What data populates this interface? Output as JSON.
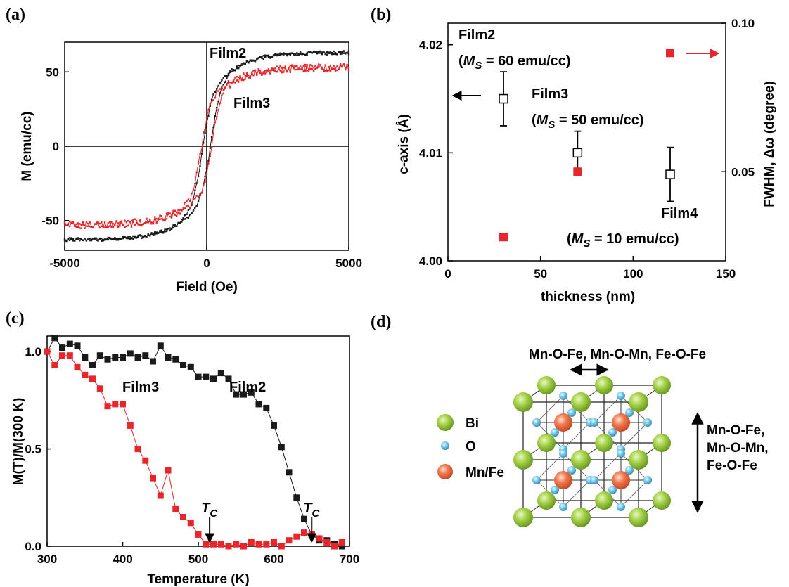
{
  "panels": {
    "a": "(a)",
    "b": "(b)",
    "c": "(c)",
    "d": "(d)"
  },
  "colors": {
    "red": "#e8262a",
    "black": "#1a1a1a",
    "bi": "#9acc3c",
    "o": "#6cc6e8",
    "mnfe": "#f07850"
  },
  "chart_data": [
    {
      "panel": "a",
      "type": "line",
      "xlabel": "Field (Oe)",
      "ylabel": "M (emu/cc)",
      "xlim": [
        -5000,
        5000
      ],
      "ylim": [
        -70,
        70
      ],
      "xticks": [
        "-5000",
        "0",
        "5000"
      ],
      "yticks": [
        "-50",
        "0",
        "50"
      ],
      "annotations": [
        "Film2",
        "Film3"
      ],
      "series": [
        {
          "name": "Film2",
          "color": "black",
          "Ms": 63,
          "Hc": 150,
          "width": 350,
          "noise": 1.2,
          "x": [
            -5000,
            -4000,
            -3000,
            -2000,
            -1000,
            -500,
            -200,
            0,
            200,
            500,
            1000,
            2000,
            3000,
            4000,
            5000
          ],
          "y": [
            -63,
            -62,
            -60,
            -56,
            -49,
            -42,
            -25,
            -8,
            18,
            40,
            49,
            56,
            60,
            62,
            63
          ]
        },
        {
          "name": "Film3",
          "color": "red",
          "Ms": 53,
          "Hc": 200,
          "width": 300,
          "noise": 2.5,
          "x": [
            -5000,
            -4000,
            -3000,
            -2000,
            -1000,
            -500,
            -200,
            0,
            200,
            500,
            1000,
            2000,
            3000,
            4000,
            5000
          ],
          "y": [
            -53,
            -52,
            -51,
            -49,
            -44,
            -38,
            -22,
            -6,
            15,
            38,
            45,
            52,
            55,
            54,
            53
          ]
        }
      ]
    },
    {
      "panel": "b",
      "type": "scatter",
      "xlabel": "thickness (nm)",
      "ylabel_left": "c-axis (Å)",
      "ylabel_right": "FWHM, Δω (degree)",
      "xlim": [
        0,
        150
      ],
      "ylim_left": [
        4.0,
        4.022
      ],
      "ylim_right": [
        0.02,
        0.1
      ],
      "xticks": [
        "0",
        "50",
        "100",
        "150"
      ],
      "yticks_left": [
        "4.00",
        "4.01",
        "4.02"
      ],
      "yticks_right": [
        "0.05",
        "0.10"
      ],
      "caxis": {
        "x": [
          30,
          70,
          120
        ],
        "y": [
          4.015,
          4.01,
          4.008
        ],
        "err": [
          0.0025,
          0.002,
          0.0025
        ]
      },
      "fwhm": {
        "x": [
          30,
          70,
          120
        ],
        "y": [
          0.028,
          0.05,
          0.09
        ]
      },
      "labels": [
        {
          "film": "Film2",
          "ms_prefix": "(",
          "ms_M": "M",
          "ms_S": "S",
          "ms_rest": " = 60 emu/cc)"
        },
        {
          "film": "Film3",
          "ms_prefix": "(",
          "ms_M": "M",
          "ms_S": "S",
          "ms_rest": " = 50 emu/cc)"
        },
        {
          "film": "Film4",
          "ms_prefix": "(",
          "ms_M": "M",
          "ms_S": "S",
          "ms_rest": " = 10 emu/cc)"
        }
      ]
    },
    {
      "panel": "c",
      "type": "line",
      "xlabel": "Temperature (K)",
      "ylabel": "M(T)/M(300 K)",
      "xlim": [
        300,
        700
      ],
      "ylim": [
        0.0,
        1.08
      ],
      "xticks": [
        "300",
        "400",
        "500",
        "600",
        "700"
      ],
      "yticks": [
        "0.0",
        "0.5",
        "1.0"
      ],
      "annotations": [
        "Film3",
        "Film2"
      ],
      "tc_label": "T",
      "tc_sub": "C",
      "tc_positions": [
        515,
        650
      ],
      "series": [
        {
          "name": "Film2",
          "color": "black",
          "x": [
            300,
            310,
            320,
            330,
            340,
            350,
            360,
            370,
            380,
            390,
            400,
            410,
            420,
            430,
            440,
            450,
            460,
            470,
            480,
            490,
            500,
            510,
            520,
            530,
            540,
            550,
            560,
            570,
            580,
            590,
            600,
            610,
            620,
            630,
            640,
            650,
            660,
            670,
            680,
            690
          ],
          "y": [
            1.0,
            1.07,
            1.02,
            1.04,
            1.03,
            0.97,
            0.93,
            0.98,
            0.96,
            0.97,
            0.97,
            0.99,
            0.97,
            0.98,
            0.95,
            1.03,
            0.97,
            0.96,
            0.93,
            0.92,
            0.87,
            0.87,
            0.86,
            0.89,
            0.86,
            0.78,
            0.78,
            0.79,
            0.73,
            0.71,
            0.62,
            0.51,
            0.38,
            0.25,
            0.14,
            0.06,
            0.03,
            0.03,
            0.01,
            0.0
          ]
        },
        {
          "name": "Film3",
          "color": "red",
          "x": [
            300,
            310,
            320,
            330,
            340,
            350,
            360,
            370,
            380,
            390,
            400,
            410,
            420,
            430,
            440,
            450,
            460,
            470,
            480,
            490,
            500,
            510,
            520,
            530,
            540,
            550,
            560,
            570,
            580,
            590,
            600,
            610,
            620,
            630,
            640,
            650,
            660,
            670,
            680,
            690
          ],
          "y": [
            1.0,
            0.93,
            0.98,
            0.98,
            0.92,
            0.88,
            0.86,
            0.81,
            0.72,
            0.73,
            0.73,
            0.62,
            0.5,
            0.44,
            0.35,
            0.26,
            0.39,
            0.19,
            0.15,
            0.12,
            0.06,
            0.01,
            0.01,
            0.01,
            0.0,
            0.01,
            0.0,
            0.02,
            0.01,
            0.01,
            0.02,
            0.0,
            0.03,
            0.05,
            0.07,
            0.06,
            0.04,
            0.02,
            0.0,
            0.02
          ]
        }
      ]
    }
  ],
  "diagram": {
    "top_label": "Mn-O-Fe, Mn-O-Mn, Fe-O-Fe",
    "side_label": [
      "Mn-O-Fe,",
      "Mn-O-Mn,",
      "Fe-O-Fe"
    ],
    "legend": [
      {
        "name": "Bi",
        "atom": "bi"
      },
      {
        "name": "O",
        "atom": "o"
      },
      {
        "name": "Mn/Fe",
        "atom": "mnfe"
      }
    ]
  }
}
